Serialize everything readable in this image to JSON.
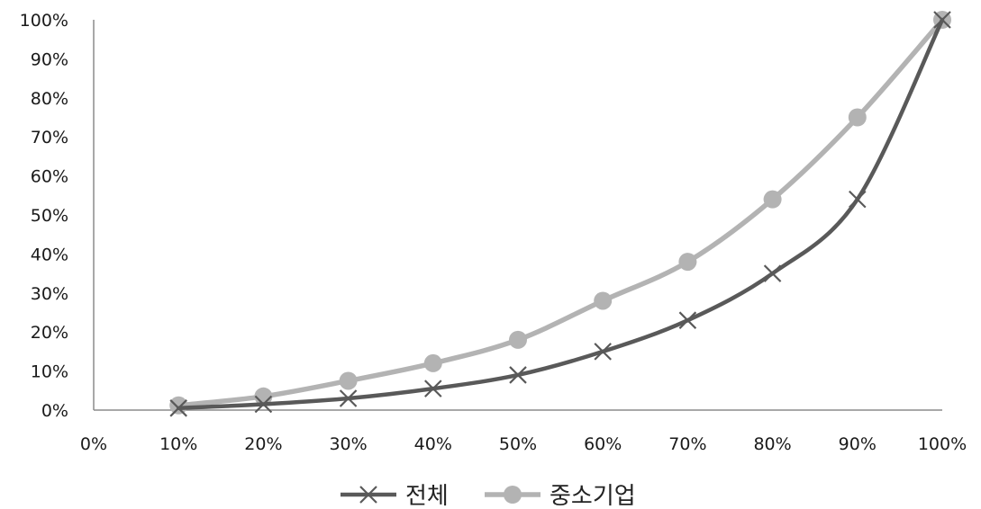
{
  "chart_data": {
    "type": "line",
    "categories": [
      "0%",
      "10%",
      "20%",
      "30%",
      "40%",
      "50%",
      "60%",
      "70%",
      "80%",
      "90%",
      "100%"
    ],
    "x": [
      0,
      10,
      20,
      30,
      40,
      50,
      60,
      70,
      80,
      90,
      100
    ],
    "series": [
      {
        "name": "전체",
        "marker": "x",
        "color": "#595959",
        "x": [
          10,
          20,
          30,
          40,
          50,
          60,
          70,
          80,
          90,
          100
        ],
        "values": [
          0.5,
          1.5,
          3,
          5.5,
          9,
          15,
          23,
          35,
          54,
          100
        ]
      },
      {
        "name": "중소기업",
        "marker": "circle",
        "color": "#b3b3b3",
        "x": [
          10,
          20,
          30,
          40,
          50,
          60,
          70,
          80,
          90,
          100
        ],
        "values": [
          1.2,
          3.5,
          7.5,
          12,
          18,
          28,
          38,
          54,
          75,
          100
        ]
      }
    ],
    "y_ticks": [
      "0%",
      "10%",
      "20%",
      "30%",
      "40%",
      "50%",
      "60%",
      "70%",
      "80%",
      "90%",
      "100%"
    ],
    "xlim": [
      0,
      100
    ],
    "ylim": [
      0,
      100
    ],
    "grid": false,
    "legend": "bottom",
    "smooth": true
  }
}
